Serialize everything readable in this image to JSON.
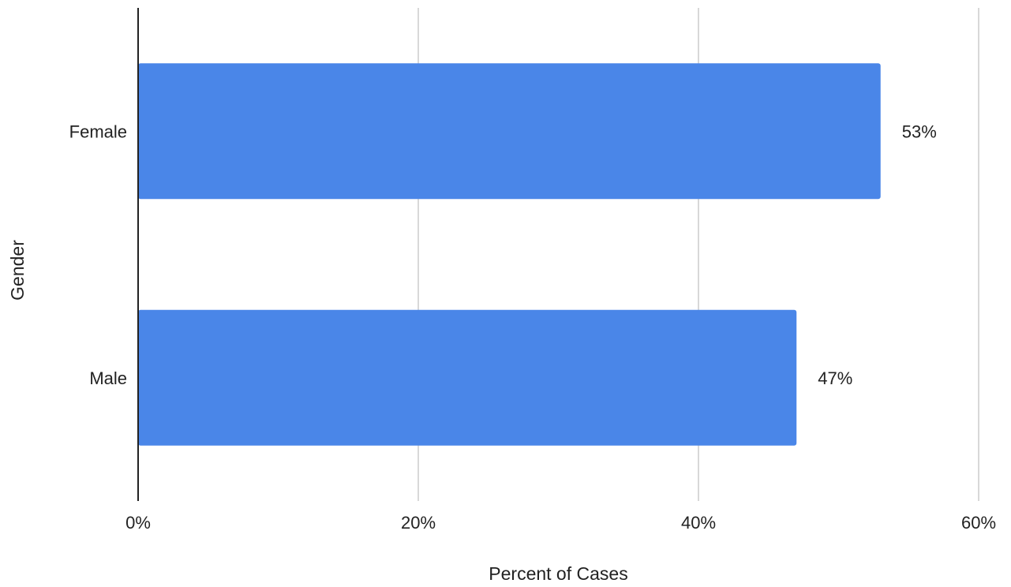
{
  "chart_data": {
    "type": "bar",
    "orientation": "horizontal",
    "categories": [
      "Female",
      "Male"
    ],
    "values": [
      53,
      47
    ],
    "value_labels": [
      "53%",
      "47%"
    ],
    "xlabel": "Percent of Cases",
    "ylabel": "Gender",
    "xlim": [
      0,
      60
    ],
    "x_ticks": [
      0,
      20,
      40,
      60
    ],
    "x_tick_labels": [
      "0%",
      "20%",
      "40%",
      "60%"
    ],
    "grid": true,
    "legend": "none",
    "bar_color": "#4a86e8",
    "grid_color": "#cccccc",
    "axis_color": "#222222"
  }
}
